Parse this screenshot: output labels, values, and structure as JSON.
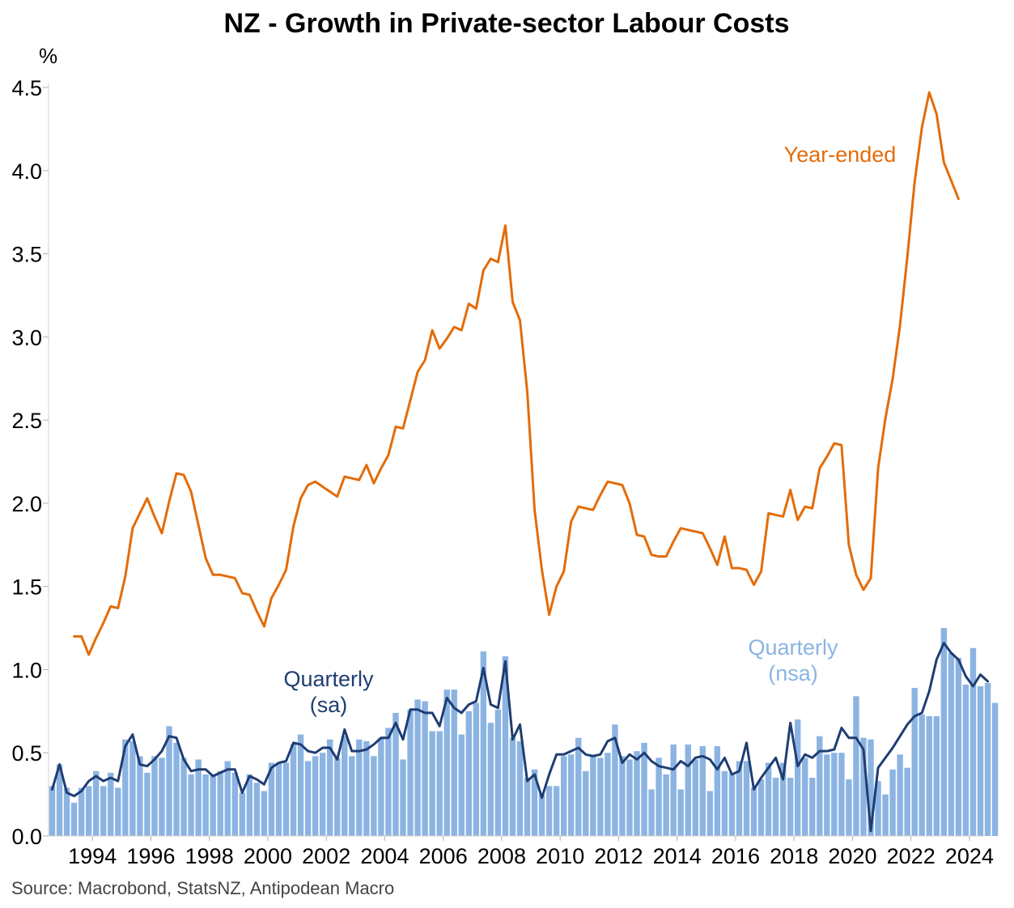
{
  "chart_data": {
    "type": "bar+line",
    "title": "NZ - Growth in Private-sector Labour Costs",
    "ylabel": "%",
    "ylim": [
      0,
      4.5
    ],
    "yticks": [
      "0.0",
      "0.5",
      "1.0",
      "1.5",
      "2.0",
      "2.5",
      "3.0",
      "3.5",
      "4.0",
      "4.5"
    ],
    "xticks": [
      "1994",
      "1996",
      "1998",
      "2000",
      "2002",
      "2004",
      "2006",
      "2008",
      "2010",
      "2012",
      "2014",
      "2016",
      "2018",
      "2020",
      "2022",
      "2024"
    ],
    "start_year": 1993.0,
    "quarters_per_year": 4,
    "grid": false,
    "source": "Source: Macrobond, StatsNZ, Antipodean Macro",
    "series": [
      {
        "name": "Quarterly (nsa)",
        "label_lines": [
          "Quarterly",
          "(nsa)"
        ],
        "type": "bar",
        "color": "#8CB4E2",
        "values": [
          0.3,
          0.43,
          0.29,
          0.2,
          0.29,
          0.3,
          0.39,
          0.3,
          0.38,
          0.29,
          0.58,
          0.57,
          0.48,
          0.38,
          0.48,
          0.47,
          0.66,
          0.56,
          0.47,
          0.37,
          0.46,
          0.37,
          0.37,
          0.39,
          0.45,
          0.38,
          0.26,
          0.37,
          0.32,
          0.27,
          0.44,
          0.44,
          0.44,
          0.55,
          0.61,
          0.45,
          0.48,
          0.5,
          0.58,
          0.47,
          0.6,
          0.48,
          0.58,
          0.57,
          0.48,
          0.59,
          0.65,
          0.74,
          0.46,
          0.76,
          0.82,
          0.81,
          0.63,
          0.63,
          0.88,
          0.88,
          0.61,
          0.75,
          0.8,
          1.11,
          0.68,
          0.76,
          1.08,
          0.59,
          0.57,
          0.35,
          0.4,
          0.25,
          0.3,
          0.3,
          0.48,
          0.49,
          0.59,
          0.39,
          0.49,
          0.47,
          0.5,
          0.67,
          0.48,
          0.46,
          0.51,
          0.56,
          0.28,
          0.47,
          0.37,
          0.55,
          0.28,
          0.55,
          0.46,
          0.54,
          0.27,
          0.54,
          0.39,
          0.38,
          0.45,
          0.45,
          0.29,
          0.34,
          0.44,
          0.35,
          0.44,
          0.35,
          0.7,
          0.47,
          0.35,
          0.6,
          0.49,
          0.5,
          0.5,
          0.34,
          0.84,
          0.59,
          0.58,
          0.33,
          0.25,
          0.4,
          0.49,
          0.41,
          0.89,
          0.73,
          0.72,
          0.72,
          1.25,
          1.1,
          1.07,
          0.91,
          1.13,
          0.9,
          0.92,
          0.8
        ]
      },
      {
        "name": "Quarterly (sa)",
        "label_lines": [
          "Quarterly",
          "(sa)"
        ],
        "type": "line",
        "color": "#1F3D73",
        "values": [
          0.28,
          0.43,
          0.26,
          0.24,
          0.27,
          0.33,
          0.36,
          0.33,
          0.35,
          0.33,
          0.54,
          0.61,
          0.43,
          0.42,
          0.46,
          0.51,
          0.6,
          0.59,
          0.46,
          0.39,
          0.4,
          0.4,
          0.36,
          0.38,
          0.4,
          0.4,
          0.26,
          0.36,
          0.34,
          0.31,
          0.41,
          0.44,
          0.45,
          0.56,
          0.55,
          0.51,
          0.5,
          0.53,
          0.53,
          0.46,
          0.64,
          0.51,
          0.51,
          0.52,
          0.55,
          0.59,
          0.59,
          0.68,
          0.58,
          0.76,
          0.76,
          0.74,
          0.74,
          0.66,
          0.83,
          0.77,
          0.74,
          0.79,
          0.81,
          1.01,
          0.79,
          0.77,
          1.05,
          0.58,
          0.67,
          0.33,
          0.37,
          0.23,
          0.37,
          0.49,
          0.49,
          0.51,
          0.53,
          0.49,
          0.48,
          0.49,
          0.57,
          0.59,
          0.44,
          0.49,
          0.46,
          0.5,
          0.45,
          0.42,
          0.41,
          0.4,
          0.45,
          0.42,
          0.47,
          0.48,
          0.46,
          0.4,
          0.47,
          0.37,
          0.39,
          0.56,
          0.28,
          0.35,
          0.41,
          0.47,
          0.34,
          0.68,
          0.42,
          0.49,
          0.47,
          0.51,
          0.51,
          0.52,
          0.65,
          0.59,
          0.59,
          0.52,
          0.03,
          0.41,
          0.47,
          0.53,
          0.6,
          0.67,
          0.72,
          0.74,
          0.87,
          1.06,
          1.16,
          1.1,
          1.06,
          0.96,
          0.9,
          0.97,
          0.93
        ]
      },
      {
        "name": "Year-ended",
        "label_lines": [
          "Year-ended"
        ],
        "type": "line",
        "color": "#E36C0A",
        "values": [
          null,
          null,
          null,
          1.2,
          1.2,
          1.09,
          1.19,
          1.28,
          1.38,
          1.37,
          1.56,
          1.85,
          1.94,
          2.03,
          1.92,
          1.82,
          2.01,
          2.18,
          2.17,
          2.07,
          1.87,
          1.67,
          1.57,
          1.57,
          1.56,
          1.55,
          1.46,
          1.45,
          1.35,
          1.26,
          1.43,
          1.51,
          1.6,
          1.86,
          2.03,
          2.11,
          2.13,
          2.1,
          2.07,
          2.04,
          2.16,
          2.15,
          2.14,
          2.23,
          2.12,
          2.21,
          2.29,
          2.46,
          2.45,
          2.62,
          2.79,
          2.86,
          3.04,
          2.93,
          2.99,
          3.06,
          3.04,
          3.2,
          3.17,
          3.4,
          3.47,
          3.45,
          3.67,
          3.21,
          3.1,
          2.67,
          1.96,
          1.6,
          1.33,
          1.5,
          1.59,
          1.89,
          1.98,
          1.97,
          1.96,
          2.05,
          2.13,
          2.12,
          2.11,
          2.0,
          1.81,
          1.8,
          1.69,
          1.68,
          1.68,
          1.77,
          1.85,
          1.84,
          1.83,
          1.82,
          1.73,
          1.63,
          1.8,
          1.61,
          1.61,
          1.6,
          1.51,
          1.59,
          1.94,
          1.93,
          1.92,
          2.08,
          1.9,
          1.98,
          1.97,
          2.21,
          2.28,
          2.36,
          2.35,
          1.75,
          1.57,
          1.48,
          1.55,
          2.21,
          2.51,
          2.75,
          3.07,
          3.48,
          3.93,
          4.26,
          4.47,
          4.34,
          4.05,
          3.94,
          3.83
        ]
      }
    ]
  }
}
